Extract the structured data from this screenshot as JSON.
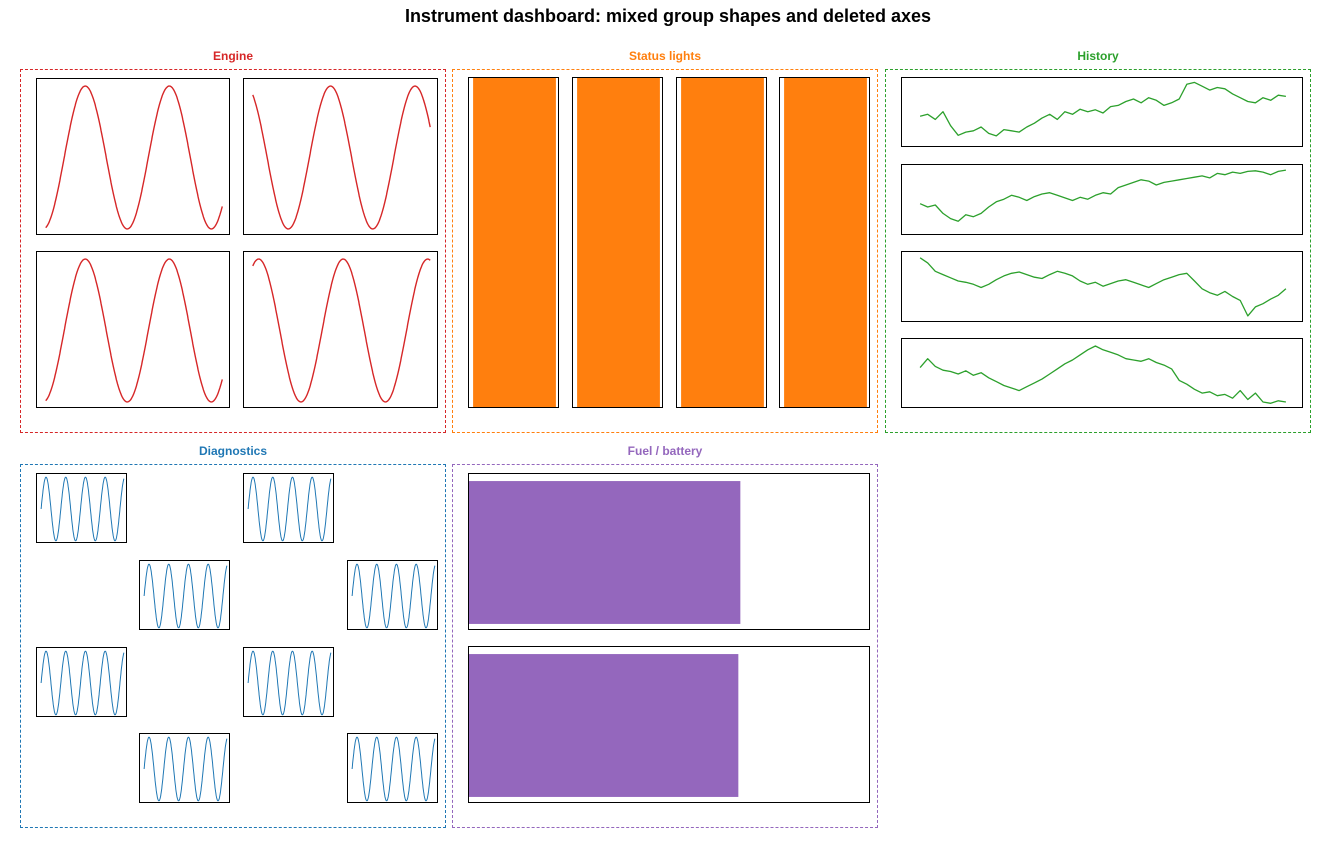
{
  "title": "Instrument dashboard: mixed group shapes and deleted axes",
  "colors": {
    "engine": "#d62728",
    "status": "#ff7f0e",
    "history": "#2ca02c",
    "diagnostics": "#1f77b4",
    "fuel": "#9467bd"
  },
  "groups": {
    "engine": {
      "title": "Engine"
    },
    "status": {
      "title": "Status lights"
    },
    "history": {
      "title": "History"
    },
    "diagnostics": {
      "title": "Diagnostics"
    },
    "fuel": {
      "title": "Fuel / battery"
    }
  },
  "chart_data": [
    {
      "group": "Engine",
      "type": "line",
      "layout": "2x2",
      "panels": [
        {
          "cycles": 2.1,
          "phase": 0.0
        },
        {
          "cycles": 2.1,
          "phase": 0.55
        },
        {
          "cycles": 2.1,
          "phase": 0.0
        },
        {
          "cycles": 2.1,
          "phase": 0.4
        }
      ],
      "ylim": [
        -1,
        1
      ],
      "axes_visible": false
    },
    {
      "group": "Status lights",
      "type": "bar",
      "layout": "1x4",
      "values": [
        1,
        1,
        1,
        1
      ],
      "ylim": [
        0,
        1
      ],
      "axes_visible": false
    },
    {
      "group": "History",
      "type": "line",
      "layout": "4x1",
      "series": [
        {
          "values": [
            0.45,
            0.48,
            0.4,
            0.52,
            0.3,
            0.15,
            0.2,
            0.22,
            0.28,
            0.18,
            0.14,
            0.24,
            0.22,
            0.2,
            0.28,
            0.34,
            0.42,
            0.48,
            0.4,
            0.52,
            0.48,
            0.56,
            0.52,
            0.55,
            0.5,
            0.6,
            0.62,
            0.68,
            0.72,
            0.66,
            0.74,
            0.7,
            0.62,
            0.66,
            0.72,
            0.95,
            0.98,
            0.92,
            0.86,
            0.9,
            0.88,
            0.8,
            0.74,
            0.68,
            0.66,
            0.74,
            0.7,
            0.78,
            0.76
          ]
        },
        {
          "values": [
            0.45,
            0.4,
            0.43,
            0.3,
            0.22,
            0.18,
            0.28,
            0.25,
            0.3,
            0.4,
            0.48,
            0.52,
            0.58,
            0.55,
            0.5,
            0.56,
            0.6,
            0.62,
            0.58,
            0.54,
            0.5,
            0.55,
            0.52,
            0.58,
            0.62,
            0.6,
            0.7,
            0.74,
            0.78,
            0.82,
            0.8,
            0.74,
            0.78,
            0.8,
            0.82,
            0.84,
            0.86,
            0.88,
            0.85,
            0.92,
            0.9,
            0.94,
            0.92,
            0.95,
            0.96,
            0.94,
            0.9,
            0.95,
            0.97
          ]
        },
        {
          "values": [
            0.96,
            0.88,
            0.75,
            0.7,
            0.65,
            0.6,
            0.58,
            0.55,
            0.5,
            0.55,
            0.62,
            0.68,
            0.72,
            0.74,
            0.7,
            0.66,
            0.64,
            0.7,
            0.75,
            0.72,
            0.68,
            0.6,
            0.55,
            0.58,
            0.52,
            0.56,
            0.6,
            0.62,
            0.58,
            0.54,
            0.5,
            0.56,
            0.62,
            0.66,
            0.7,
            0.72,
            0.6,
            0.48,
            0.42,
            0.38,
            0.44,
            0.36,
            0.3,
            0.06,
            0.2,
            0.25,
            0.32,
            0.38,
            0.48
          ]
        },
        {
          "values": [
            0.6,
            0.74,
            0.62,
            0.56,
            0.54,
            0.5,
            0.55,
            0.48,
            0.52,
            0.44,
            0.38,
            0.32,
            0.28,
            0.24,
            0.3,
            0.36,
            0.42,
            0.5,
            0.58,
            0.66,
            0.72,
            0.8,
            0.88,
            0.94,
            0.88,
            0.84,
            0.8,
            0.74,
            0.72,
            0.7,
            0.74,
            0.68,
            0.64,
            0.58,
            0.4,
            0.34,
            0.26,
            0.2,
            0.22,
            0.16,
            0.18,
            0.12,
            0.24,
            0.1,
            0.2,
            0.06,
            0.04,
            0.08,
            0.06
          ]
        }
      ],
      "axes_visible": false
    },
    {
      "group": "Diagnostics",
      "type": "line",
      "layout": "4x4 checkerboard (8 axes deleted)",
      "panels": [
        {
          "cycles": 4.2
        },
        {
          "cycles": 4.2
        },
        {
          "cycles": 4.2
        },
        {
          "cycles": 4.2
        },
        {
          "cycles": 4.2
        },
        {
          "cycles": 4.2
        },
        {
          "cycles": 4.2
        },
        {
          "cycles": 4.2
        }
      ],
      "ylim": [
        -1,
        1
      ],
      "axes_visible": false
    },
    {
      "group": "Fuel / battery",
      "type": "bar",
      "orientation": "horizontal",
      "layout": "2x1",
      "values": [
        0.675,
        0.67
      ],
      "xlim": [
        0,
        1
      ],
      "axes_visible": false
    }
  ]
}
